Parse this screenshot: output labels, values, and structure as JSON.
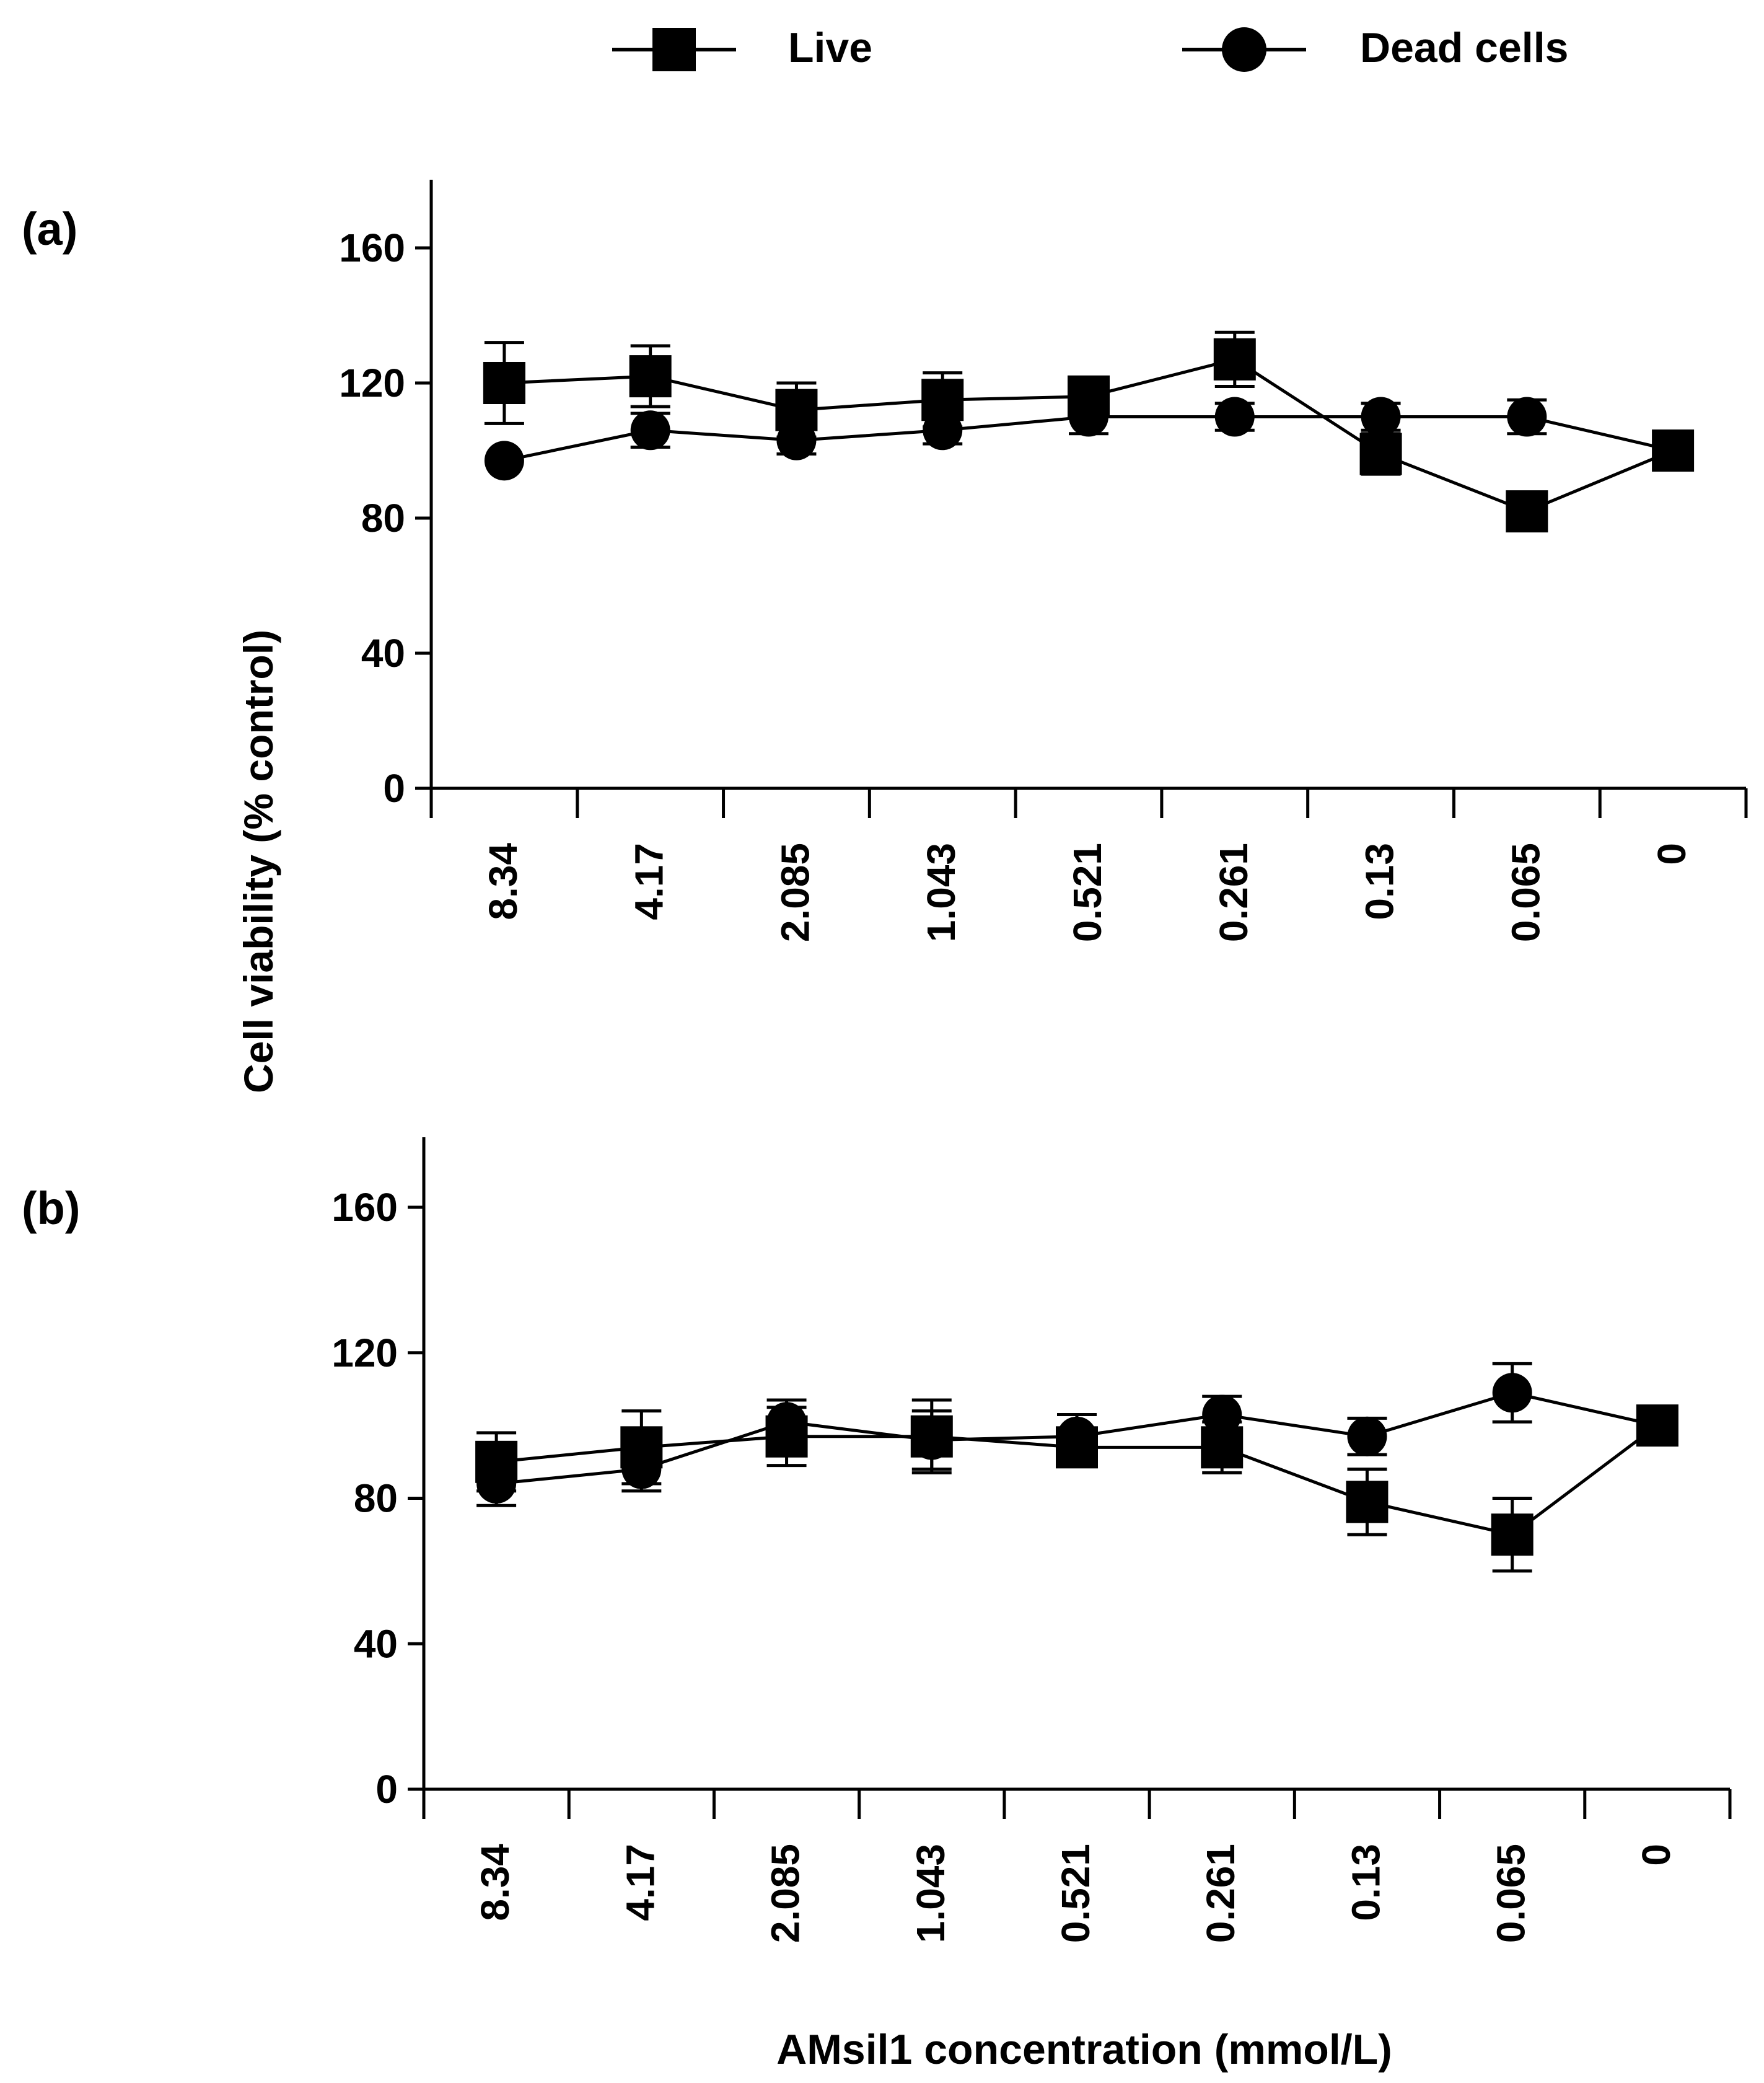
{
  "legend": {
    "live": "Live",
    "dead": "Dead cells"
  },
  "y_axis_label": "Cell viability (% control)",
  "x_axis_label": "AMsil1 concentration (mmol/L)",
  "colors": {
    "ink": "#000000",
    "background": "#ffffff"
  },
  "chart_data": [
    {
      "type": "line",
      "panel_label": "(a)",
      "categories": [
        "8.34",
        "4.17",
        "2.085",
        "1.043",
        "0.521",
        "0.261",
        "0.13",
        "0.065",
        "0"
      ],
      "ylim": [
        0,
        180
      ],
      "yticks": [
        "0",
        "40",
        "80",
        "120",
        "160"
      ],
      "series": [
        {
          "name": "Live",
          "marker": "square",
          "values": [
            120,
            122,
            112,
            115,
            116,
            127,
            99,
            82,
            100
          ],
          "errors": [
            12,
            9,
            8,
            8,
            5,
            8,
            6,
            4,
            0
          ]
        },
        {
          "name": "Dead cells",
          "marker": "circle",
          "values": [
            97,
            106,
            103,
            106,
            110,
            110,
            110,
            110,
            100
          ],
          "errors": [
            0,
            5,
            4,
            4,
            5,
            4,
            4,
            5,
            0
          ]
        }
      ]
    },
    {
      "type": "line",
      "panel_label": "(b)",
      "categories": [
        "8.34",
        "4.17",
        "2.085",
        "1.043",
        "0.521",
        "0.261",
        "0.13",
        "0.065",
        "0"
      ],
      "ylim": [
        0,
        180
      ],
      "yticks": [
        "0",
        "40",
        "80",
        "120",
        "160"
      ],
      "series": [
        {
          "name": "Live",
          "marker": "square",
          "values": [
            90,
            94,
            97,
            97,
            94,
            94,
            79,
            70,
            100
          ],
          "errors": [
            8,
            10,
            8,
            10,
            4,
            7,
            9,
            10,
            0
          ]
        },
        {
          "name": "Dead cells",
          "marker": "circle",
          "values": [
            84,
            88,
            101,
            96,
            97,
            103,
            97,
            109,
            100
          ],
          "errors": [
            6,
            6,
            6,
            8,
            6,
            5,
            5,
            8,
            0
          ]
        }
      ]
    }
  ]
}
